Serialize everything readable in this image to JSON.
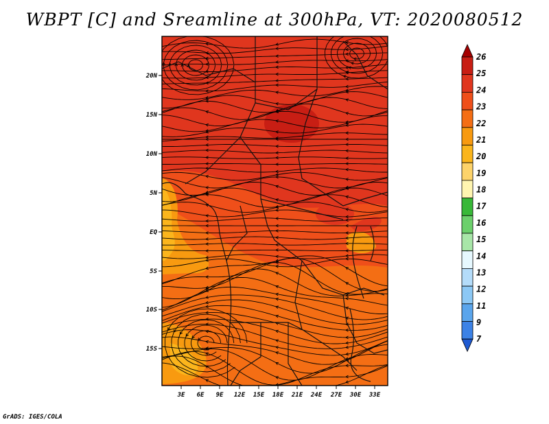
{
  "title": "WBPT [C] and Sreamline at 300hPa, VT: 2020080512",
  "credit": "GrADS: IGES/COLA",
  "map": {
    "lat_labels": [
      "20N",
      "15N",
      "10N",
      "5N",
      "EQ",
      "5S",
      "10S",
      "15S"
    ],
    "lon_labels": [
      "3E",
      "6E",
      "9E",
      "12E",
      "15E",
      "18E",
      "21E",
      "24E",
      "27E",
      "30E",
      "33E"
    ],
    "lat_range": [
      -20,
      24
    ],
    "lon_range": [
      0,
      35
    ],
    "field_colors": {
      "warm_core": "#c81e14",
      "hot": "#e0361e",
      "main": "#ef4f1a",
      "mid": "#f46e14",
      "cool": "#f89a10",
      "coolest": "#fbb51c"
    }
  },
  "colorbar": {
    "labels": [
      "26",
      "25",
      "24",
      "23",
      "22",
      "21",
      "20",
      "19",
      "18",
      "17",
      "16",
      "15",
      "14",
      "13",
      "12",
      "11",
      "9",
      "7"
    ],
    "colors": [
      "#a50000",
      "#c81e14",
      "#e0361e",
      "#ef4f1a",
      "#f46e14",
      "#f89a10",
      "#fbb51c",
      "#fdd36a",
      "#fff5b0",
      "#38b838",
      "#6cd06c",
      "#a8e6a8",
      "#e6f8ff",
      "#b4dcfa",
      "#8cc8f5",
      "#5aa5ec",
      "#3c82e6",
      "#1e5ad2"
    ]
  }
}
